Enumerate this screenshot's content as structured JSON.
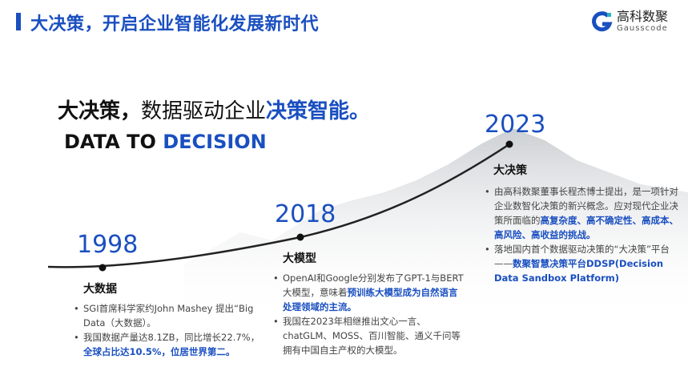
{
  "header": {
    "title": "大决策，开启企业智能化发展新时代"
  },
  "logo": {
    "cn": "高科数聚",
    "en": "Gausscode"
  },
  "slogan": {
    "part1": "大决策，",
    "part2": "数据驱动企业",
    "part3": "决策智能。",
    "en1": "DATA TO ",
    "en2": "DECISION"
  },
  "colors": {
    "accent": "#1a4fc0"
  },
  "timeline": [
    {
      "year": "1998",
      "title": "大数据",
      "bullets": [
        [
          {
            "t": "SGI首席科学家约John  Mashey 提出“Big Data（大数据）。"
          }
        ],
        [
          {
            "t": "我国数据产量达8.1ZB，同比增长22.7%，"
          },
          {
            "t": "全球占比达10.5%，位居世界第二。",
            "h": true
          }
        ]
      ]
    },
    {
      "year": "2018",
      "title": "大模型",
      "bullets": [
        [
          {
            "t": "OpenAI和Google分别发布了GPT-1与BERT大模型，意味着"
          },
          {
            "t": "预训练大模型成为自然语言处理领域的主流。",
            "h": true
          }
        ],
        [
          {
            "t": "我国在2023年相继推出文心一言、chatGLM、MOSS、百川智能、通义千问等拥有中国自主产权的大模型。"
          }
        ]
      ]
    },
    {
      "year": "2023",
      "title": "大决策",
      "bullets": [
        [
          {
            "t": "由高科数聚董事长程杰博士提出，是一项针对企业数智化决策的新兴概念。应对现代企业决策所面临的"
          },
          {
            "t": "高复杂度、高不确定性、高成本、高风险、高收益的挑战。",
            "h": true
          }
        ],
        [
          {
            "t": "落地国内首个数据驱动决策的“大决策”平台——"
          },
          {
            "t": "数聚智慧决策平台DDSP(Decision Data Sandbox Platform)",
            "h": true
          }
        ]
      ]
    }
  ]
}
